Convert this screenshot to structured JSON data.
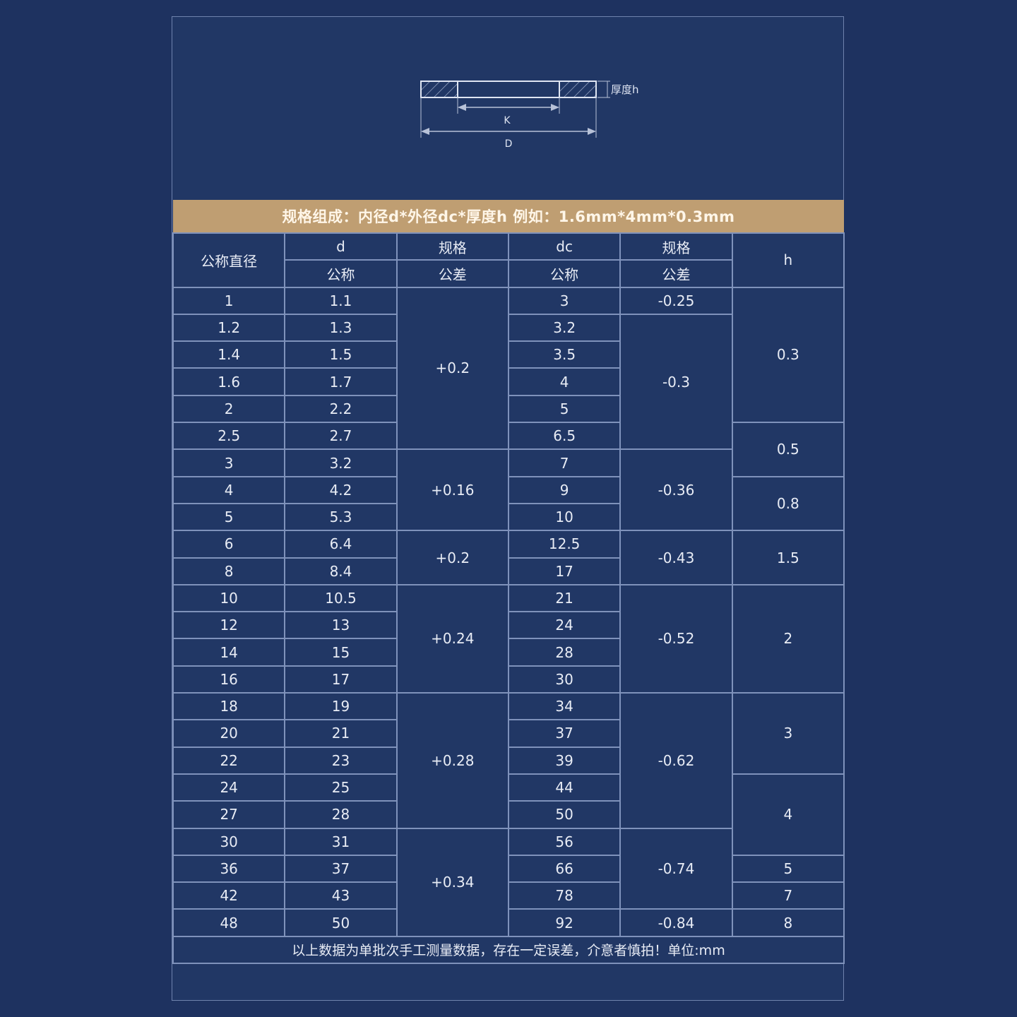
{
  "diagram": {
    "thickness_label": "厚度h",
    "inner_label": "K",
    "outer_label": "D"
  },
  "banner": "规格组成：内径d*外径dc*厚度h  例如：1.6mm*4mm*0.3mm",
  "header": {
    "nominal": "公称直径",
    "d": "d",
    "d_sub": "公称",
    "d_tol": "规格",
    "d_tol_sub": "公差",
    "dc": "dc",
    "dc_sub": "公称",
    "dc_tol": "规格",
    "dc_tol_sub": "公差",
    "h": "h"
  },
  "rows": [
    {
      "nominal": "1",
      "d": "1.1",
      "dc": "3"
    },
    {
      "nominal": "1.2",
      "d": "1.3",
      "dc": "3.2"
    },
    {
      "nominal": "1.4",
      "d": "1.5",
      "dc": "3.5"
    },
    {
      "nominal": "1.6",
      "d": "1.7",
      "dc": "4"
    },
    {
      "nominal": "2",
      "d": "2.2",
      "dc": "5"
    },
    {
      "nominal": "2.5",
      "d": "2.7",
      "dc": "6.5"
    },
    {
      "nominal": "3",
      "d": "3.2",
      "dc": "7"
    },
    {
      "nominal": "4",
      "d": "4.2",
      "dc": "9"
    },
    {
      "nominal": "5",
      "d": "5.3",
      "dc": "10"
    },
    {
      "nominal": "6",
      "d": "6.4",
      "dc": "12.5"
    },
    {
      "nominal": "8",
      "d": "8.4",
      "dc": "17"
    },
    {
      "nominal": "10",
      "d": "10.5",
      "dc": "21"
    },
    {
      "nominal": "12",
      "d": "13",
      "dc": "24"
    },
    {
      "nominal": "14",
      "d": "15",
      "dc": "28"
    },
    {
      "nominal": "16",
      "d": "17",
      "dc": "30"
    },
    {
      "nominal": "18",
      "d": "19",
      "dc": "34"
    },
    {
      "nominal": "20",
      "d": "21",
      "dc": "37"
    },
    {
      "nominal": "22",
      "d": "23",
      "dc": "39"
    },
    {
      "nominal": "24",
      "d": "25",
      "dc": "44"
    },
    {
      "nominal": "27",
      "d": "28",
      "dc": "50"
    },
    {
      "nominal": "30",
      "d": "31",
      "dc": "56"
    },
    {
      "nominal": "36",
      "d": "37",
      "dc": "66"
    },
    {
      "nominal": "42",
      "d": "43",
      "dc": "78"
    },
    {
      "nominal": "48",
      "d": "50",
      "dc": "92"
    }
  ],
  "d_tolerance_groups": [
    {
      "value": "+0.2",
      "span": 6
    },
    {
      "value": "+0.16",
      "span": 3
    },
    {
      "value": "+0.2",
      "span": 2
    },
    {
      "value": "+0.24",
      "span": 4
    },
    {
      "value": "+0.28",
      "span": 5
    },
    {
      "value": "+0.34",
      "span": 4
    }
  ],
  "dc_tolerance_groups": [
    {
      "value": "-0.25",
      "span": 1
    },
    {
      "value": "-0.3",
      "span": 5
    },
    {
      "value": "-0.36",
      "span": 3
    },
    {
      "value": "-0.43",
      "span": 2
    },
    {
      "value": "-0.52",
      "span": 4
    },
    {
      "value": "-0.62",
      "span": 5
    },
    {
      "value": "-0.74",
      "span": 3
    },
    {
      "value": "-0.84",
      "span": 1
    }
  ],
  "h_groups": [
    {
      "value": "0.3",
      "span": 5
    },
    {
      "value": "0.5",
      "span": 2
    },
    {
      "value": "0.8",
      "span": 2
    },
    {
      "value": "1.5",
      "span": 2
    },
    {
      "value": "2",
      "span": 4
    },
    {
      "value": "3",
      "span": 3
    },
    {
      "value": "4",
      "span": 3
    },
    {
      "value": "5",
      "span": 1
    },
    {
      "value": "7",
      "span": 1
    },
    {
      "value": "8",
      "span": 1
    }
  ],
  "footer": "以上数据为单批次手工测量数据，存在一定误差，介意者慎拍！单位:mm",
  "colors": {
    "background": "#1e3260",
    "banner": "#bf9e72",
    "grid": "#7f92bb"
  }
}
